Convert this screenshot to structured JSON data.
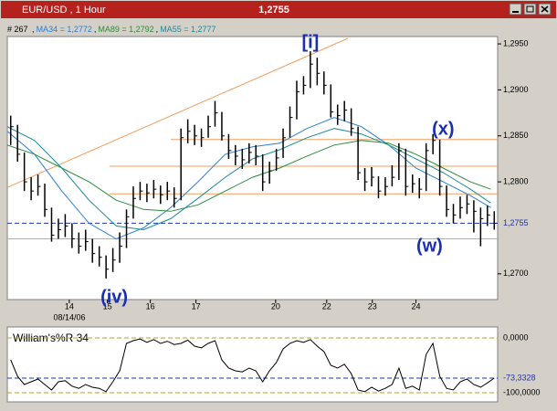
{
  "chart_data": {
    "type": "ohlc",
    "title": "EUR/USD , 1 Hour",
    "last": {
      "value": 1.2755,
      "label": "1,2755"
    },
    "bars_label": "# 267",
    "xlim": [
      0,
      72
    ],
    "xticks": [
      {
        "value": 9.1,
        "label": "14"
      },
      {
        "value": 14.7,
        "label": "15"
      },
      {
        "value": 21,
        "label": "16"
      },
      {
        "value": 27.7,
        "label": "17"
      },
      {
        "value": 39.4,
        "label": "20"
      },
      {
        "value": 46.9,
        "label": "22"
      },
      {
        "value": 53.6,
        "label": "23"
      },
      {
        "value": 60,
        "label": "24"
      }
    ],
    "date_label": "08/14/06",
    "ylim": [
      1.2672,
      1.2958
    ],
    "yticks": [
      {
        "value": 1.295,
        "label": "1,2950"
      },
      {
        "value": 1.29,
        "label": "1,2900"
      },
      {
        "value": 1.285,
        "label": "1,2850"
      },
      {
        "value": 1.28,
        "label": "1,2800"
      },
      {
        "value": 1.27,
        "label": "1,2700"
      }
    ],
    "color": "#000000",
    "high": [
      1.2872,
      1.2862,
      1.2832,
      1.2805,
      1.2808,
      1.2798,
      1.2772,
      1.276,
      1.2765,
      1.2755,
      1.2745,
      1.2748,
      1.2738,
      1.273,
      1.272,
      1.2728,
      1.2745,
      1.277,
      1.2795,
      1.28,
      1.2798,
      1.2802,
      1.2796,
      1.28,
      1.2794,
      1.2858,
      1.2868,
      1.2862,
      1.2858,
      1.2872,
      1.2888,
      1.2876,
      1.2852,
      1.284,
      1.2836,
      1.2842,
      1.284,
      1.283,
      1.2822,
      1.2836,
      1.2858,
      1.2882,
      1.291,
      1.2915,
      1.2942,
      1.2935,
      1.292,
      1.2906,
      1.2884,
      1.2888,
      1.288,
      1.286,
      1.2815,
      1.2816,
      1.2806,
      1.2805,
      1.2818,
      1.2842,
      1.2836,
      1.2808,
      1.2804,
      1.2842,
      1.2852,
      1.2846,
      1.2796,
      1.2776,
      1.2784,
      1.2786,
      1.278,
      1.2772,
      1.2774,
      1.2768
    ],
    "low": [
      1.284,
      1.2822,
      1.279,
      1.278,
      1.2785,
      1.2762,
      1.2735,
      1.2738,
      1.274,
      1.2728,
      1.2722,
      1.2725,
      1.2712,
      1.2708,
      1.2695,
      1.2702,
      1.2712,
      1.2728,
      1.276,
      1.278,
      1.2778,
      1.2782,
      1.2776,
      1.278,
      1.2772,
      1.278,
      1.2842,
      1.284,
      1.2838,
      1.2848,
      1.286,
      1.2845,
      1.2825,
      1.2818,
      1.2814,
      1.282,
      1.2818,
      1.279,
      1.2798,
      1.2812,
      1.2826,
      1.2848,
      1.2868,
      1.2895,
      1.2902,
      1.2905,
      1.2895,
      1.287,
      1.2862,
      1.2866,
      1.285,
      1.2802,
      1.279,
      1.2795,
      1.2782,
      1.2785,
      1.2795,
      1.2802,
      1.2785,
      1.2788,
      1.2782,
      1.279,
      1.283,
      1.2785,
      1.2762,
      1.2755,
      1.276,
      1.2765,
      1.2745,
      1.273,
      1.2752,
      1.2748
    ],
    "close": [
      1.286,
      1.283,
      1.28,
      1.279,
      1.2795,
      1.277,
      1.2742,
      1.2748,
      1.2752,
      1.2738,
      1.273,
      1.2735,
      1.2722,
      1.2718,
      1.2705,
      1.2715,
      1.273,
      1.2762,
      1.2782,
      1.279,
      1.2788,
      1.2792,
      1.2786,
      1.279,
      1.2782,
      1.2848,
      1.2855,
      1.285,
      1.2848,
      1.286,
      1.2875,
      1.285,
      1.2834,
      1.2828,
      1.2824,
      1.2832,
      1.2828,
      1.28,
      1.2812,
      1.2826,
      1.2848,
      1.287,
      1.2898,
      1.2905,
      1.2928,
      1.2918,
      1.2905,
      1.2876,
      1.2872,
      1.2878,
      1.2858,
      1.281,
      1.28,
      1.2805,
      1.279,
      1.2795,
      1.2805,
      1.2834,
      1.2795,
      1.2798,
      1.2792,
      1.2834,
      1.2845,
      1.2795,
      1.277,
      1.2764,
      1.2772,
      1.2776,
      1.2768,
      1.276,
      1.2764,
      1.2755
    ],
    "ma_x": [
      0,
      4,
      8,
      12,
      16,
      20,
      24,
      28,
      32,
      36,
      40,
      44,
      48,
      52,
      56,
      60,
      64,
      68,
      71
    ],
    "series": [
      {
        "name": "MA34 = 1,2772",
        "color": "#2a7fd4",
        "values": [
          1.2855,
          1.283,
          1.279,
          1.2755,
          1.2738,
          1.275,
          1.2772,
          1.28,
          1.283,
          1.2838,
          1.2842,
          1.2858,
          1.287,
          1.286,
          1.284,
          1.2815,
          1.28,
          1.2785,
          1.2772
        ]
      },
      {
        "name": "MA89 = 1,2792",
        "color": "#2e8b3a",
        "values": [
          1.284,
          1.283,
          1.2815,
          1.28,
          1.278,
          1.277,
          1.2768,
          1.2775,
          1.279,
          1.2805,
          1.2815,
          1.2828,
          1.284,
          1.2845,
          1.2842,
          1.283,
          1.2815,
          1.28,
          1.2792
        ]
      },
      {
        "name": "MA55 = 1,2777",
        "color": "#1a8a9a",
        "values": [
          1.286,
          1.2845,
          1.2815,
          1.278,
          1.2752,
          1.2748,
          1.276,
          1.2782,
          1.2805,
          1.2825,
          1.2835,
          1.2848,
          1.2858,
          1.2852,
          1.284,
          1.2825,
          1.281,
          1.2792,
          1.2777
        ]
      }
    ],
    "trendline": {
      "x": [
        0,
        50
      ],
      "values": [
        1.2794,
        1.2956
      ],
      "color": "#f0a060"
    },
    "levels": [
      {
        "value": 1.2846,
        "from": 24
      },
      {
        "value": 1.2817,
        "from": 15
      },
      {
        "value": 1.2787,
        "from": 15
      },
      {
        "value": 1.2738,
        "from": 0
      }
    ],
    "level_color": "#f0a060",
    "annotations": [
      {
        "text": "[i]",
        "x": 44.5
      },
      {
        "text": "(x)",
        "x": 64
      },
      {
        "text": "(w)",
        "x": 62
      },
      {
        "text": "(iv)",
        "x": 15.7
      }
    ],
    "annotation_color": "#1a2fb0",
    "indicator": {
      "type": "line",
      "title": "William's%R 34",
      "color": "#000000",
      "ylim": [
        -116.7,
        20
      ],
      "yticks": [
        {
          "value": 0,
          "label": "0,0000"
        },
        {
          "value": -100,
          "label": "-100,0000"
        }
      ],
      "last": {
        "value": -73.3328,
        "label": "-73,3328"
      },
      "values": [
        -40,
        -70,
        -85,
        -80,
        -75,
        -85,
        -95,
        -80,
        -78,
        -88,
        -92,
        -85,
        -90,
        -92,
        -98,
        -80,
        -60,
        -10,
        -5,
        -2,
        -8,
        -3,
        -10,
        -6,
        -12,
        -10,
        -4,
        -15,
        -18,
        -10,
        -5,
        -40,
        -55,
        -60,
        -62,
        -55,
        -60,
        -80,
        -60,
        -45,
        -20,
        -10,
        -5,
        -8,
        -3,
        -15,
        -25,
        -50,
        -55,
        -48,
        -65,
        -95,
        -98,
        -90,
        -97,
        -92,
        -85,
        -55,
        -92,
        -88,
        -95,
        -30,
        -10,
        -70,
        -92,
        -95,
        -80,
        -75,
        -85,
        -90,
        -82,
        -73.3328
      ]
    }
  }
}
